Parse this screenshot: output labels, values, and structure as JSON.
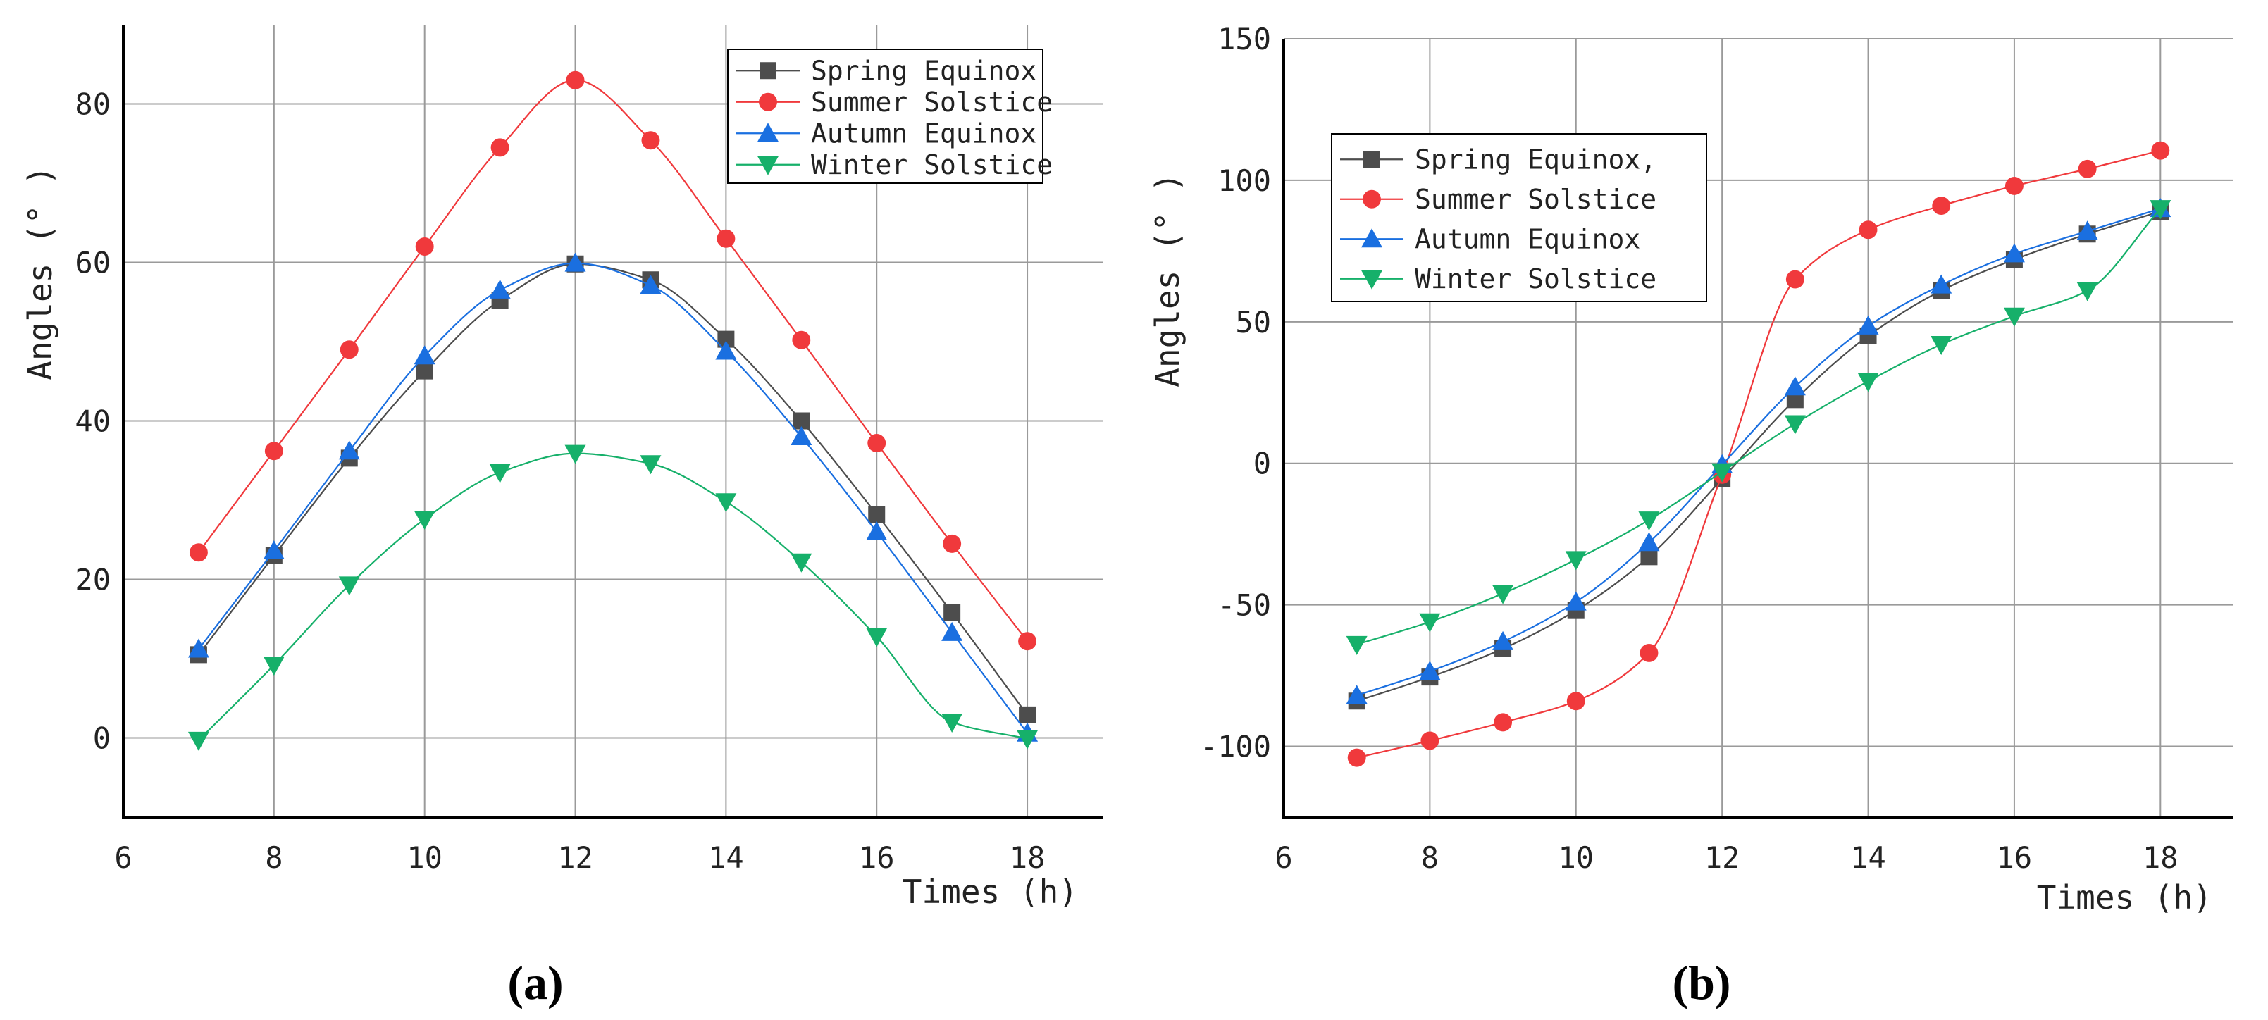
{
  "chart_data": [
    {
      "type": "line",
      "panel_label": "(a)",
      "xlabel": "Times (h)",
      "ylabel": "Angles (° )",
      "xlim": [
        6,
        19
      ],
      "ylim": [
        -10,
        90
      ],
      "x_ticks": [
        6,
        8,
        10,
        12,
        14,
        16,
        18
      ],
      "y_ticks": [
        0,
        20,
        40,
        60,
        80
      ],
      "grid": true,
      "legend_position": "top-right",
      "x": [
        7,
        8,
        9,
        10,
        11,
        12,
        13,
        14,
        15,
        16,
        17,
        18
      ],
      "series": [
        {
          "name": "Spring Equinox",
          "marker": "square",
          "color": "#4d4d4d",
          "values": [
            10.5,
            23,
            35.3,
            46.3,
            55.2,
            59.8,
            57.8,
            50.3,
            40,
            28.2,
            15.8,
            2.9
          ]
        },
        {
          "name": "Summer Solstice",
          "marker": "circle",
          "color": "#f0393c",
          "values": [
            23.4,
            36.2,
            49,
            62,
            74.5,
            83,
            75.4,
            63,
            50.2,
            37.2,
            24.5,
            12.2
          ]
        },
        {
          "name": "Autumn Equinox",
          "marker": "triangle-up",
          "color": "#1a6fe0",
          "values": [
            11.2,
            23.6,
            36.2,
            48.2,
            56.5,
            59.9,
            57.1,
            48.8,
            38,
            26,
            13.3,
            0.6
          ]
        },
        {
          "name": "Winter Solstice",
          "marker": "triangle-down",
          "color": "#16b06a",
          "values": [
            -0.3,
            9.2,
            19.3,
            27.6,
            33.5,
            35.9,
            34.6,
            29.8,
            22.2,
            12.8,
            2,
            -0.1
          ]
        }
      ]
    },
    {
      "type": "line",
      "panel_label": "(b)",
      "xlabel": "Times (h)",
      "ylabel": "Angles (° )",
      "xlim": [
        6,
        19
      ],
      "ylim": [
        -125,
        150
      ],
      "x_ticks": [
        6,
        8,
        10,
        12,
        14,
        16,
        18
      ],
      "y_ticks": [
        -100,
        -50,
        0,
        50,
        100,
        150
      ],
      "grid": true,
      "legend_position": "top-left",
      "x": [
        7,
        8,
        9,
        10,
        11,
        12,
        13,
        14,
        15,
        16,
        17,
        18
      ],
      "series": [
        {
          "name": "Spring Equinox,",
          "marker": "square",
          "color": "#4d4d4d",
          "values": [
            -84,
            -75.5,
            -65.5,
            -52,
            -33,
            -5.5,
            22.5,
            45,
            61,
            72,
            81,
            89
          ]
        },
        {
          "name": "Summer Solstice",
          "marker": "circle",
          "color": "#f0393c",
          "values": [
            -104,
            -98,
            -91.5,
            -84,
            -67,
            -4,
            65,
            82.5,
            91,
            98,
            104,
            110.5
          ]
        },
        {
          "name": "Autumn Equinox",
          "marker": "triangle-up",
          "color": "#1a6fe0",
          "values": [
            -82,
            -73.5,
            -63,
            -49,
            -28,
            -0.5,
            27,
            48.5,
            63,
            74,
            82,
            90
          ]
        },
        {
          "name": "Winter Solstice",
          "marker": "triangle-down",
          "color": "#16b06a",
          "values": [
            -64,
            -56,
            -46,
            -34,
            -20,
            -3,
            14,
            29,
            42,
            52,
            61,
            90
          ]
        }
      ]
    }
  ]
}
